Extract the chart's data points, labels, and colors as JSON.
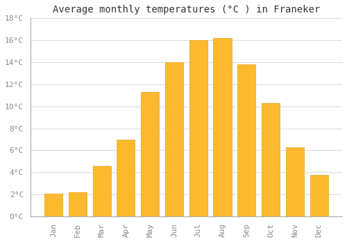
{
  "title": "Average monthly temperatures (°C ) in Franeker",
  "months": [
    "Jan",
    "Feb",
    "Mar",
    "Apr",
    "May",
    "Jun",
    "Jul",
    "Aug",
    "Sep",
    "Oct",
    "Nov",
    "Dec"
  ],
  "values": [
    2.1,
    2.2,
    4.6,
    7.0,
    11.3,
    14.0,
    16.0,
    16.2,
    13.8,
    10.3,
    6.3,
    3.8
  ],
  "bar_color": "#FDB92E",
  "bar_edge_color": "#E8A010",
  "background_color": "#FFFFFF",
  "grid_color": "#DDDDDD",
  "title_fontsize": 10,
  "tick_label_color": "#888888",
  "ylim": [
    0,
    18
  ],
  "yticks": [
    0,
    2,
    4,
    6,
    8,
    10,
    12,
    14,
    16,
    18
  ]
}
